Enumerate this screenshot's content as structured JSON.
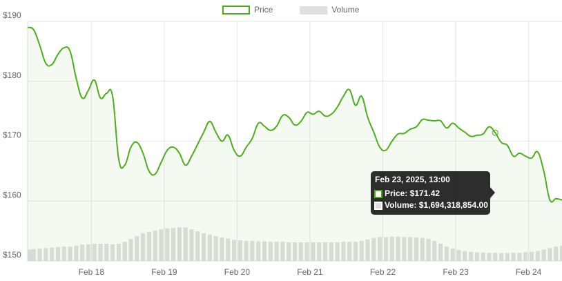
{
  "chart_data": {
    "type": "line",
    "legend": "top",
    "grid": true,
    "x": [
      "2025-02-17 03:00",
      "2025-02-17 05:00",
      "2025-02-17 07:00",
      "2025-02-17 09:00",
      "2025-02-17 11:00",
      "2025-02-17 13:00",
      "2025-02-17 15:00",
      "2025-02-17 17:00",
      "2025-02-17 19:00",
      "2025-02-17 21:00",
      "2025-02-17 23:00",
      "2025-02-18 01:00",
      "2025-02-18 03:00",
      "2025-02-18 05:00",
      "2025-02-18 07:00",
      "2025-02-18 09:00",
      "2025-02-18 11:00",
      "2025-02-18 13:00",
      "2025-02-18 15:00",
      "2025-02-18 17:00",
      "2025-02-18 19:00",
      "2025-02-18 21:00",
      "2025-02-18 23:00",
      "2025-02-19 01:00",
      "2025-02-19 03:00",
      "2025-02-19 05:00",
      "2025-02-19 07:00",
      "2025-02-19 09:00",
      "2025-02-19 11:00",
      "2025-02-19 13:00",
      "2025-02-19 15:00",
      "2025-02-19 17:00",
      "2025-02-19 19:00",
      "2025-02-19 21:00",
      "2025-02-19 23:00",
      "2025-02-20 01:00",
      "2025-02-20 03:00",
      "2025-02-20 05:00",
      "2025-02-20 07:00",
      "2025-02-20 09:00",
      "2025-02-20 11:00",
      "2025-02-20 13:00",
      "2025-02-20 15:00",
      "2025-02-20 17:00",
      "2025-02-20 19:00",
      "2025-02-20 21:00",
      "2025-02-20 23:00",
      "2025-02-21 01:00",
      "2025-02-21 03:00",
      "2025-02-21 05:00",
      "2025-02-21 07:00",
      "2025-02-21 09:00",
      "2025-02-21 11:00",
      "2025-02-21 13:00",
      "2025-02-21 15:00",
      "2025-02-21 17:00",
      "2025-02-21 19:00",
      "2025-02-21 21:00",
      "2025-02-21 23:00",
      "2025-02-22 01:00",
      "2025-02-22 03:00",
      "2025-02-22 05:00",
      "2025-02-22 07:00",
      "2025-02-22 09:00",
      "2025-02-22 11:00",
      "2025-02-22 13:00",
      "2025-02-22 15:00",
      "2025-02-22 17:00",
      "2025-02-22 19:00",
      "2025-02-22 21:00",
      "2025-02-22 23:00",
      "2025-02-23 01:00",
      "2025-02-23 03:00",
      "2025-02-23 05:00",
      "2025-02-23 07:00",
      "2025-02-23 09:00",
      "2025-02-23 11:00",
      "2025-02-23 13:00",
      "2025-02-23 15:00",
      "2025-02-23 17:00",
      "2025-02-23 19:00",
      "2025-02-23 21:00",
      "2025-02-23 23:00",
      "2025-02-24 01:00",
      "2025-02-24 03:00",
      "2025-02-24 05:00",
      "2025-02-24 07:00",
      "2025-02-24 09:00",
      "2025-02-24 11:00"
    ],
    "xlim": [
      "2025-02-17 03:00",
      "2025-02-24 11:00"
    ],
    "xticks": [
      {
        "value": "2025-02-18 00:00",
        "label": "Feb 18"
      },
      {
        "value": "2025-02-19 00:00",
        "label": "Feb 19"
      },
      {
        "value": "2025-02-20 00:00",
        "label": "Feb 20"
      },
      {
        "value": "2025-02-21 00:00",
        "label": "Feb 21"
      },
      {
        "value": "2025-02-22 00:00",
        "label": "Feb 22"
      },
      {
        "value": "2025-02-23 00:00",
        "label": "Feb 23"
      },
      {
        "value": "2025-02-24 00:00",
        "label": "Feb 24"
      }
    ],
    "ylim": [
      150,
      190
    ],
    "yticks": [
      {
        "value": 150,
        "label": "$150"
      },
      {
        "value": 160,
        "label": "$160"
      },
      {
        "value": 170,
        "label": "$170"
      },
      {
        "value": 180,
        "label": "$180"
      },
      {
        "value": 190,
        "label": "$190"
      }
    ],
    "y2lim": [
      0,
      50000000000
    ],
    "series": [
      {
        "name": "Price",
        "color": "#4caf1a",
        "axis": "y",
        "values": [
          189.0,
          188.6,
          186.0,
          183.0,
          182.8,
          184.5,
          185.6,
          185.0,
          180.5,
          177.2,
          178.5,
          180.2,
          177.2,
          178.0,
          177.5,
          167.0,
          166.0,
          169.0,
          169.8,
          168.0,
          165.0,
          164.5,
          166.5,
          168.5,
          169.0,
          168.0,
          166.0,
          167.5,
          169.5,
          171.5,
          173.3,
          171.5,
          170.0,
          171.0,
          168.5,
          167.5,
          169.0,
          170.5,
          173.0,
          172.5,
          171.8,
          172.5,
          174.3,
          174.0,
          172.7,
          173.3,
          174.8,
          174.5,
          175.0,
          174.2,
          174.5,
          175.7,
          177.5,
          178.6,
          176.0,
          177.5,
          174.0,
          171.5,
          169.0,
          168.5,
          170.0,
          171.2,
          171.3,
          172.0,
          172.4,
          173.6,
          173.5,
          173.4,
          173.4,
          172.2,
          173.0,
          172.2,
          171.5,
          170.8,
          171.0,
          171.2,
          172.4,
          171.42,
          169.8,
          169.3,
          167.5,
          168.0,
          167.5,
          167.2,
          168.2,
          165.0,
          160.2,
          160.4,
          160.2
        ]
      },
      {
        "name": "Volume",
        "color": "#e0e0e0",
        "axis": "y2",
        "values": [
          2400000000,
          2500000000,
          2600000000,
          2700000000,
          2800000000,
          2900000000,
          3000000000,
          3000000000,
          3200000000,
          3400000000,
          3500000000,
          3600000000,
          3600000000,
          3600000000,
          3500000000,
          3600000000,
          4000000000,
          4600000000,
          5200000000,
          5800000000,
          6100000000,
          6300000000,
          6600000000,
          6800000000,
          6900000000,
          7000000000,
          7000000000,
          6600000000,
          6200000000,
          5800000000,
          5500000000,
          5200000000,
          4900000000,
          4700000000,
          4400000000,
          4300000000,
          4200000000,
          4200000000,
          4100000000,
          4100000000,
          4000000000,
          4000000000,
          4000000000,
          3900000000,
          3900000000,
          3900000000,
          3900000000,
          3900000000,
          3900000000,
          3900000000,
          3900000000,
          3900000000,
          4000000000,
          4000000000,
          4000000000,
          4200000000,
          4500000000,
          4800000000,
          5000000000,
          5000000000,
          5100000000,
          5100000000,
          5000000000,
          5000000000,
          4900000000,
          4800000000,
          4600000000,
          4200000000,
          3600000000,
          3000000000,
          2600000000,
          2300000000,
          2100000000,
          1900000000,
          1800000000,
          1750000000,
          1700000000,
          1694318854,
          1650000000,
          1650000000,
          1700000000,
          1700000000,
          1800000000,
          1900000000,
          2100000000,
          2400000000,
          2700000000,
          3000000000,
          3200000000
        ]
      }
    ],
    "tooltip": {
      "index": 77,
      "title": "Feb 23, 2025, 13:00",
      "lines": [
        "Price: $171.42",
        "Volume: $1,694,318,854.00"
      ]
    }
  }
}
